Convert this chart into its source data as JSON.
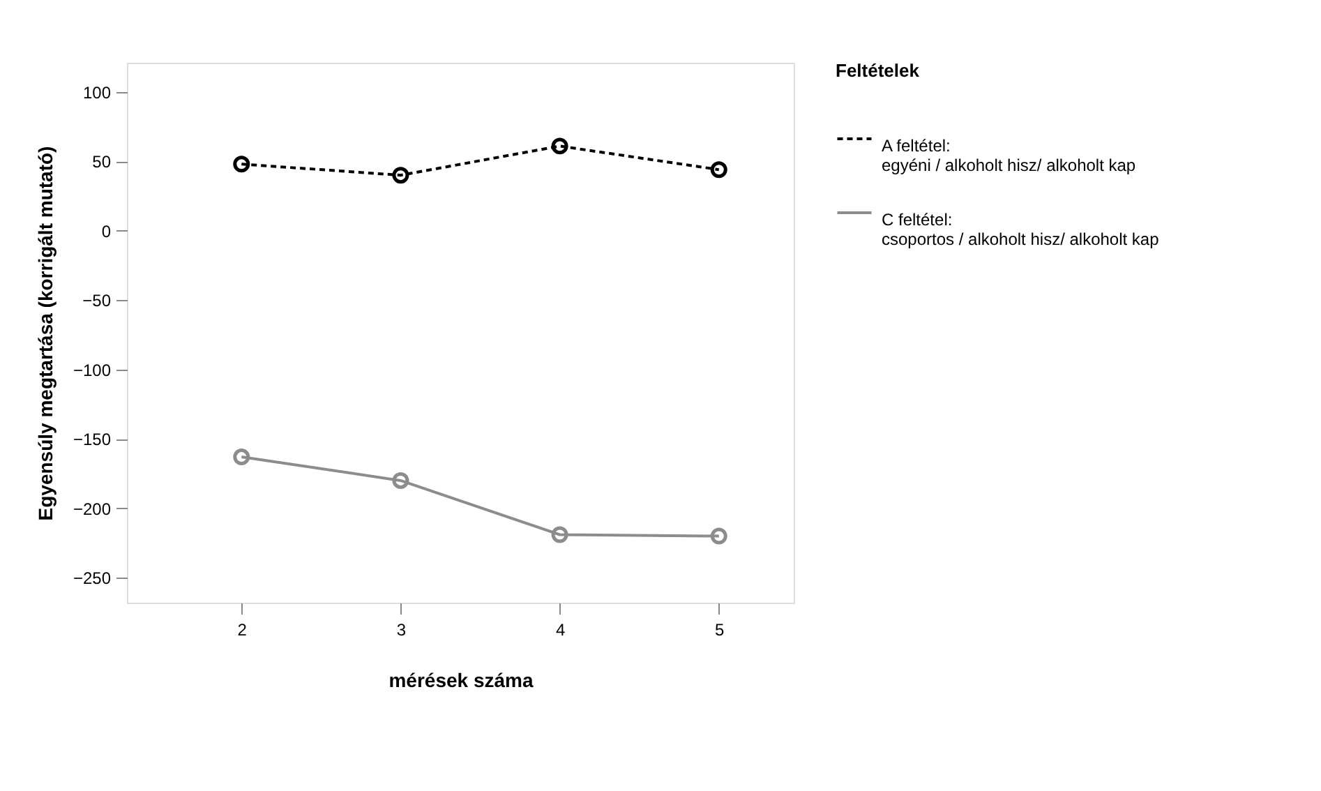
{
  "chart_data": {
    "type": "line",
    "xlabel": "mérések száma",
    "ylabel": "Egyensúly megtartása (korrigált mutató)",
    "legend_title": "Feltételek",
    "x": [
      2,
      3,
      4,
      5
    ],
    "series": [
      {
        "name": "A feltétel:\negyéni / alkoholt hisz/ alkoholt kap",
        "color": "#000000",
        "line_style": "dashed",
        "values": [
          48,
          40,
          61,
          44
        ]
      },
      {
        "name": "C feltétel:\ncsoportos / alkoholt hisz/ alkoholt kap",
        "color": "#8c8c8c",
        "line_style": "solid",
        "values": [
          -163,
          -180,
          -219,
          -220
        ]
      }
    ],
    "xlim": [
      1.28,
      5.47
    ],
    "ylim": [
      -268,
      121
    ],
    "xticks": [
      2,
      3,
      4,
      5
    ],
    "yticks": [
      -250,
      -200,
      -150,
      -100,
      -50,
      0,
      50,
      100
    ],
    "marker": "circle",
    "grid": false,
    "legend": "right"
  }
}
